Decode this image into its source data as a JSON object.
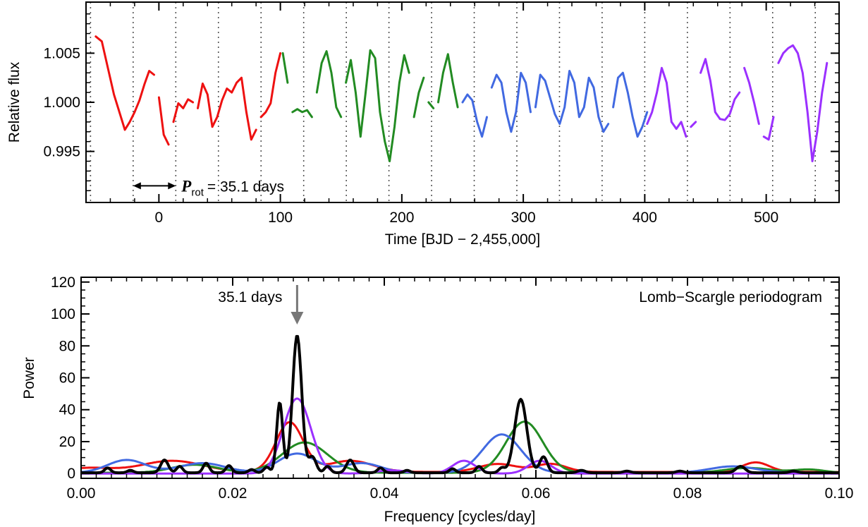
{
  "colors": {
    "q1": "#ee1111",
    "q2": "#228b22",
    "q3": "#4169e1",
    "q4": "#9b30ff",
    "combined": "#000000",
    "arrow": "#777777",
    "grid": "#555555"
  },
  "chart_data": [
    {
      "type": "line",
      "xlabel": "Time [BJD − 2,455,000]",
      "ylabel": "Relative flux",
      "xlim": [
        -60,
        560
      ],
      "ylim": [
        0.9898,
        1.0102
      ],
      "xticks": [
        0,
        100,
        200,
        300,
        400,
        500
      ],
      "xtick_labels": [
        "0",
        "100",
        "200",
        "300",
        "400",
        "500"
      ],
      "yticks": [
        0.995,
        1.0,
        1.005
      ],
      "ytick_labels": [
        "0.995",
        "1.000",
        "1.005"
      ],
      "grid": "vertical dotted lines at multiples of the rotation period",
      "grid_lines_x": [
        -56.3,
        -21.2,
        13.9,
        49.0,
        84.1,
        119.2,
        154.3,
        189.4,
        224.5,
        259.6,
        294.7,
        329.8,
        364.9,
        400.0,
        435.1,
        470.2,
        505.3,
        540.4
      ],
      "annotation": {
        "symbol": "P",
        "subscript": "rot",
        "text": "= 35.1 days",
        "arrow_from": -21.2,
        "arrow_to": 13.9,
        "y": 0.9915
      },
      "series": [
        {
          "color_key": "q1",
          "x": [
            -52,
            -47,
            -42,
            -37,
            -32,
            -28,
            -24,
            -20,
            -16,
            -12,
            -8,
            -4,
            0,
            4,
            8,
            12,
            16,
            20,
            24,
            28,
            32,
            36,
            40,
            44,
            48,
            52,
            56,
            60,
            64,
            68,
            72,
            76,
            80,
            84,
            88,
            92,
            96,
            100
          ],
          "y": [
            1.0067,
            1.0062,
            1.0035,
            1.0008,
            0.9988,
            0.9972,
            0.998,
            0.999,
            1.0002,
            1.0018,
            1.0032,
            1.0028,
            1.0005,
            0.9967,
            0.9957,
            0.998,
            0.9999,
            0.9994,
            1.0003,
            1.0,
            0.9994,
            1.0019,
            1.0008,
            0.9975,
            0.9985,
            1.0002,
            1.0014,
            1.001,
            1.002,
            1.0025,
            0.999,
            0.9962,
            0.9972,
            0.9985,
            0.999,
            0.9999,
            1.003,
            1.005
          ],
          "gaps_after": [
            -4,
            8,
            28,
            80
          ]
        },
        {
          "color_key": "q2",
          "x": [
            102,
            106,
            110,
            114,
            118,
            122,
            126,
            130,
            134,
            138,
            142,
            146,
            150,
            154,
            158,
            162,
            166,
            170,
            174,
            178,
            182,
            186,
            190,
            194,
            198,
            202,
            206,
            210,
            214,
            218,
            222,
            226,
            230,
            234,
            238,
            242,
            246
          ],
          "y": [
            1.005,
            1.002,
            0.999,
            0.9993,
            0.999,
            0.9992,
            0.9985,
            1.001,
            1.004,
            1.0052,
            1.003,
            0.9995,
            0.9985,
            1.002,
            1.0043,
            1.001,
            0.9965,
            1.0008,
            1.0053,
            1.0045,
            0.999,
            0.996,
            0.994,
            0.9975,
            1.002,
            1.0048,
            1.003,
            0.9985,
            1.001,
            1.0025,
            1.0,
            0.9994,
            1.0,
            1.003,
            1.0049,
            1.002,
            0.9995
          ],
          "gaps_after": [
            106,
            126,
            150,
            206,
            218,
            226
          ]
        },
        {
          "color_key": "q3",
          "x": [
            250,
            254,
            258,
            262,
            266,
            270,
            274,
            278,
            282,
            286,
            290,
            294,
            298,
            302,
            306,
            310,
            314,
            318,
            322,
            326,
            330,
            334,
            338,
            342,
            346,
            350,
            354,
            358,
            362,
            366,
            370,
            374,
            378,
            382,
            386,
            390,
            394,
            398,
            402
          ],
          "y": [
            1.0,
            1.0008,
            1.0002,
            0.998,
            0.9965,
            0.9985,
            1.0015,
            1.0028,
            1.002,
            0.999,
            0.997,
            0.999,
            1.003,
            1.002,
            0.999,
            0.9995,
            1.0028,
            1.0022,
            1.0005,
            0.9988,
            0.9978,
            0.9995,
            1.0032,
            1.002,
            0.9985,
            0.9995,
            1.0025,
            1.0015,
            0.9985,
            0.997,
            0.9978,
            0.9995,
            1.0025,
            1.003,
            1.001,
            0.9985,
            0.9965,
            0.9975,
            0.999
          ],
          "gaps_after": [
            270,
            306,
            370
          ]
        },
        {
          "color_key": "q4",
          "x": [
            402,
            406,
            410,
            414,
            418,
            422,
            426,
            430,
            434,
            438,
            442,
            446,
            450,
            454,
            458,
            462,
            466,
            470,
            474,
            478,
            482,
            486,
            490,
            494,
            498,
            502,
            506,
            510,
            514,
            518,
            522,
            526,
            530,
            534,
            538,
            542,
            546,
            550
          ],
          "y": [
            0.9978,
            0.999,
            1.001,
            1.0035,
            1.002,
            0.998,
            0.9973,
            0.998,
            0.9965,
            0.9975,
            0.998,
            1.003,
            1.0044,
            1.0022,
            0.999,
            0.9983,
            0.9982,
            0.9988,
            1.0003,
            1.001,
            1.0035,
            1.002,
            1.0,
            0.9978,
            0.9965,
            0.9962,
            0.9985,
            1.004,
            1.005,
            1.0055,
            1.0058,
            1.005,
            1.003,
            0.999,
            0.994,
            0.997,
            1.001,
            1.004
          ],
          "gaps_after": [
            434,
            442,
            478,
            494,
            506
          ]
        }
      ]
    },
    {
      "type": "line",
      "title": "Lomb−Scargle periodogram",
      "xlabel": "Frequency [cycles/day]",
      "ylabel": "Power",
      "xlim": [
        0.0,
        0.1
      ],
      "ylim": [
        -3,
        123
      ],
      "xticks": [
        0.0,
        0.02,
        0.04,
        0.06,
        0.08,
        0.1
      ],
      "xtick_labels": [
        "0.00",
        "0.02",
        "0.04",
        "0.06",
        "0.08",
        "0.10"
      ],
      "yticks": [
        0,
        20,
        40,
        60,
        80,
        100,
        120
      ],
      "ytick_labels": [
        "0",
        "20",
        "40",
        "60",
        "80",
        "100",
        "120"
      ],
      "annotation": {
        "text": "35.1 days",
        "x": 0.0285
      },
      "series": [
        {
          "color_key": "q1",
          "baseline": 1.0,
          "peaks": [
            [
              0.001,
              2.5,
              0.003
            ],
            [
              0.012,
              7.0,
              0.004
            ],
            [
              0.0275,
              31.0,
              0.0018
            ],
            [
              0.0355,
              7.0,
              0.003
            ],
            [
              0.055,
              5.0,
              0.0025
            ],
            [
              0.062,
              5.0,
              0.002
            ],
            [
              0.089,
              6.0,
              0.0018
            ]
          ]
        },
        {
          "color_key": "q2",
          "baseline": 0.5,
          "peaks": [
            [
              0.015,
              5.0,
              0.003
            ],
            [
              0.0295,
              19.0,
              0.003
            ],
            [
              0.0585,
              32.0,
              0.0024
            ],
            [
              0.088,
              3.0,
              0.003
            ],
            [
              0.096,
              2.0,
              0.002
            ]
          ]
        },
        {
          "color_key": "q3",
          "baseline": 0.5,
          "peaks": [
            [
              0.006,
              8.0,
              0.0025
            ],
            [
              0.016,
              6.0,
              0.003
            ],
            [
              0.0285,
              12.0,
              0.0025
            ],
            [
              0.037,
              6.0,
              0.0025
            ],
            [
              0.0555,
              24.0,
              0.0025
            ],
            [
              0.086,
              4.0,
              0.003
            ]
          ]
        },
        {
          "color_key": "q4",
          "baseline": 0.0,
          "peaks": [
            [
              0.0285,
              47.0,
              0.0018
            ],
            [
              0.0505,
              8.0,
              0.0015
            ],
            [
              0.0605,
              8.0,
              0.0015
            ],
            [
              0.041,
              2.0,
              0.002
            ]
          ]
        },
        {
          "color_key": "combined",
          "baseline": 0.5,
          "peaks": [
            [
              0.0285,
              86.0,
              0.0006
            ],
            [
              0.0262,
              44.0,
              0.0004
            ],
            [
              0.058,
              46.0,
              0.0008
            ],
            [
              0.061,
              10.0,
              0.0005
            ],
            [
              0.0305,
              10.0,
              0.0005
            ],
            [
              0.0355,
              8.0,
              0.0005
            ],
            [
              0.011,
              8.0,
              0.0005
            ],
            [
              0.013,
              4.0,
              0.0004
            ],
            [
              0.0165,
              6.0,
              0.0004
            ],
            [
              0.0195,
              4.5,
              0.0004
            ],
            [
              0.0245,
              3.5,
              0.0004
            ],
            [
              0.0325,
              4.0,
              0.0004
            ],
            [
              0.0395,
              3.0,
              0.0004
            ],
            [
              0.049,
              2.5,
              0.0004
            ],
            [
              0.0525,
              4.0,
              0.0004
            ],
            [
              0.0555,
              3.0,
              0.0004
            ],
            [
              0.087,
              4.0,
              0.0006
            ],
            [
              0.0035,
              3.0,
              0.0004
            ],
            [
              0.0065,
              1.5,
              0.0004
            ],
            [
              0.0225,
              2.0,
              0.0004
            ],
            [
              0.043,
              1.5,
              0.0004
            ],
            [
              0.066,
              1.5,
              0.0005
            ],
            [
              0.072,
              1.0,
              0.0005
            ],
            [
              0.079,
              1.0,
              0.0005
            ],
            [
              0.094,
              1.0,
              0.0005
            ]
          ]
        }
      ]
    }
  ]
}
